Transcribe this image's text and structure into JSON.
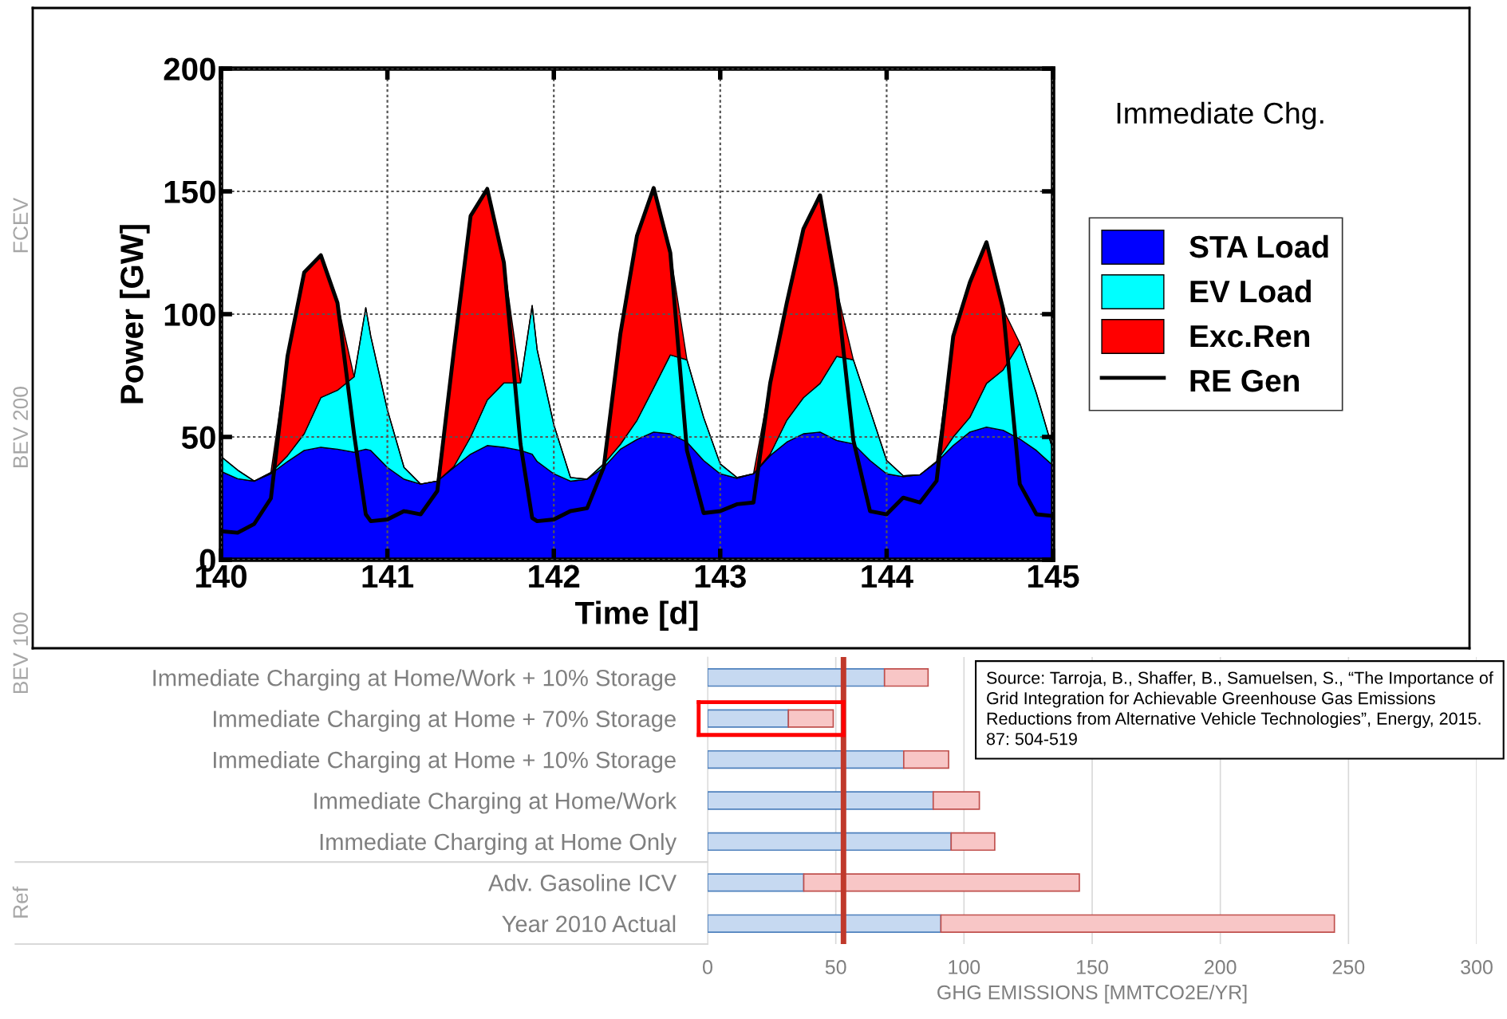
{
  "chart_data": [
    {
      "type": "area",
      "stacked": true,
      "annotations": [
        "Immediate Chg."
      ],
      "xlabel": "Time [d]",
      "ylabel": "Power [GW]",
      "x": [
        140.0,
        140.1,
        140.2,
        140.3,
        140.4,
        140.5,
        140.6,
        140.7,
        140.8,
        140.87,
        140.9,
        141.0,
        141.1,
        141.2,
        141.3,
        141.4,
        141.5,
        141.6,
        141.7,
        141.8,
        141.87,
        141.9,
        142.0,
        142.1,
        142.2,
        142.3,
        142.4,
        142.5,
        142.6,
        142.7,
        142.8,
        142.9,
        143.0,
        143.1,
        143.2,
        143.3,
        143.4,
        143.5,
        143.6,
        143.7,
        143.8,
        143.9,
        144.0,
        144.1,
        144.2,
        144.3,
        144.4,
        144.5,
        144.6,
        144.7,
        144.8,
        144.9,
        145.0
      ],
      "series": [
        {
          "name": "STA Load",
          "color": "#0000ff",
          "values": [
            36,
            33,
            32,
            35,
            40,
            44.5,
            45.8,
            45,
            43.8,
            45,
            44.5,
            37.6,
            32.8,
            30.8,
            32,
            37.6,
            43,
            46.5,
            45.8,
            44.5,
            43,
            40,
            35,
            32,
            32.8,
            37.6,
            45,
            49,
            52,
            51.3,
            47.9,
            40.4,
            35,
            33.2,
            35,
            42.4,
            47.9,
            51.3,
            52,
            48.6,
            47.2,
            40.4,
            35,
            33.8,
            34.6,
            39.7,
            46.5,
            52,
            54,
            52.7,
            49.2,
            44.5,
            38.3
          ]
        },
        {
          "name": "EV Load",
          "color": "#00ffff",
          "values": [
            6,
            3.5,
            0,
            0.5,
            2.4,
            6.8,
            20.2,
            24,
            30.7,
            57.6,
            46.5,
            23.4,
            4.8,
            0,
            0,
            0.4,
            7,
            18.5,
            26.2,
            27.5,
            60.5,
            45.5,
            20,
            1.5,
            0,
            1.4,
            2,
            7.8,
            18,
            32.1,
            33.5,
            17.6,
            4,
            0.3,
            0,
            0.6,
            8.9,
            14.7,
            19.8,
            34.2,
            34.2,
            20.6,
            5.4,
            0.4,
            0,
            0.3,
            3.5,
            6,
            17.8,
            24.6,
            39,
            23.2,
            6.2
          ]
        },
        {
          "name": "Exc.Ren",
          "color": "#ff0000",
          "values": [
            0,
            0,
            0,
            0,
            40.6,
            65.7,
            58,
            35.6,
            0,
            0,
            0,
            0,
            0,
            0,
            0,
            47.5,
            90,
            86,
            49,
            0,
            0,
            0,
            0,
            0,
            0,
            0,
            45,
            75.2,
            81.4,
            41.6,
            0,
            0,
            0,
            0,
            0,
            28.8,
            47.8,
            68.7,
            76.6,
            27.2,
            0,
            0,
            0,
            0,
            0,
            0,
            41,
            54.9,
            57.5,
            24.7,
            0,
            0,
            0
          ]
        },
        {
          "name": "RE Gen",
          "type": "line",
          "color": "#000000",
          "values": [
            11.6,
            11,
            14.6,
            25,
            83,
            117,
            124,
            104.6,
            51,
            18.5,
            15.7,
            16.4,
            19.8,
            18.5,
            28,
            85.5,
            140,
            151,
            121,
            47,
            17,
            15.7,
            16.4,
            19.8,
            21,
            37.6,
            92,
            132,
            151.4,
            125,
            44.5,
            19,
            19.8,
            22.6,
            23.3,
            71.8,
            104.6,
            134.7,
            148.4,
            110,
            48.6,
            19.8,
            18.5,
            25.3,
            23.3,
            32.1,
            91,
            112.9,
            129.3,
            102,
            30.8,
            18.5,
            17.8
          ]
        }
      ],
      "xlim": [
        140,
        145
      ],
      "ylim": [
        0,
        200
      ],
      "xticks": [
        140,
        141,
        142,
        143,
        144,
        145
      ],
      "yticks": [
        0,
        50,
        100,
        150,
        200
      ],
      "grid": true,
      "legend": "right"
    },
    {
      "type": "bar",
      "orientation": "horizontal",
      "stacked": true,
      "xlabel": "GHG EMISSIONS [MMTCO2E/YR]",
      "categories": [
        "Immediate Charging at Home/Work + 10% Storage",
        "Immediate Charging at Home + 70% Storage",
        "Immediate Charging at Home + 10% Storage",
        "Immediate Charging at Home/Work",
        "Immediate Charging at Home Only",
        "Adv. Gasoline ICV",
        "Year 2010 Actual"
      ],
      "series": [
        {
          "color": "#c6d9f1",
          "values": [
            69,
            31.5,
            76.5,
            88,
            95,
            37.5,
            91
          ]
        },
        {
          "color": "#f8c6c6",
          "values": [
            17,
            17.5,
            17.5,
            18,
            17,
            107.5,
            153.5
          ]
        }
      ],
      "xlim": [
        0,
        300
      ],
      "xticks": [
        0,
        50,
        100,
        150,
        200,
        250,
        300
      ],
      "grid": "x",
      "ref_lines": [
        {
          "axis": "x",
          "value": 53,
          "color": "#c0392b"
        }
      ],
      "annotations": [
        "FCEV",
        "BEV 200",
        "BEV 100",
        "Ref",
        "Source: Tarroja, B., Shaffer, B., Samuelsen, S., “The Importance of Grid Integration for Achievable Greenhouse Gas Emissions Reductions from Alternative Vehicle Technologies”, Energy, 2015. 87: 504-519"
      ]
    }
  ]
}
